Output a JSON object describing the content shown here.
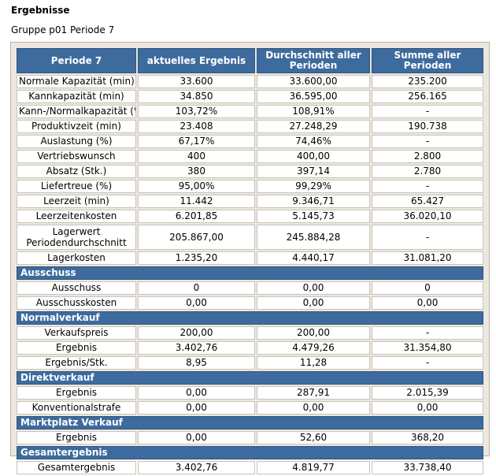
{
  "title": "Ergebnisse",
  "subtitle": "Gruppe p01 Periode 7",
  "header": [
    "Periode 7",
    "aktuelles Ergebnis",
    "Durchschnitt aller Perioden",
    "Summe aller Perioden"
  ],
  "sections": [
    {
      "heading": "",
      "rows": [
        {
          "label": "Normale Kapazität (min)",
          "values": [
            "33.600",
            "33.600,00",
            "235.200"
          ]
        },
        {
          "label": "Kannkapazität (min)",
          "values": [
            "34.850",
            "36.595,00",
            "256.165"
          ]
        },
        {
          "label": "Kann-/Normalkapazität (%)",
          "values": [
            "103,72%",
            "108,91%",
            "-"
          ]
        },
        {
          "label": "Produktivzeit (min)",
          "values": [
            "23.408",
            "27.248,29",
            "190.738"
          ]
        },
        {
          "label": "Auslastung (%)",
          "values": [
            "67,17%",
            "74,46%",
            "-"
          ]
        },
        {
          "label": "Vertriebswunsch",
          "values": [
            "400",
            "400,00",
            "2.800"
          ]
        },
        {
          "label": "Absatz (Stk.)",
          "values": [
            "380",
            "397,14",
            "2.780"
          ]
        },
        {
          "label": "Liefertreue (%)",
          "values": [
            "95,00%",
            "99,29%",
            "-"
          ]
        },
        {
          "label": "Leerzeit (min)",
          "values": [
            "11.442",
            "9.346,71",
            "65.427"
          ]
        },
        {
          "label": "Leerzeitenkosten",
          "values": [
            "6.201,85",
            "5.145,73",
            "36.020,10"
          ]
        },
        {
          "label": "Lagerwert Periodendurchschnitt",
          "values": [
            "205.867,00",
            "245.884,28",
            "-"
          ],
          "tall": true
        },
        {
          "label": "Lagerkosten",
          "values": [
            "1.235,20",
            "4.440,17",
            "31.081,20"
          ]
        }
      ]
    },
    {
      "heading": "Ausschuss",
      "rows": [
        {
          "label": "Ausschuss",
          "values": [
            "0",
            "0,00",
            "0"
          ]
        },
        {
          "label": "Ausschusskosten",
          "values": [
            "0,00",
            "0,00",
            "0,00"
          ]
        }
      ]
    },
    {
      "heading": "Normalverkauf",
      "rows": [
        {
          "label": "Verkaufspreis",
          "values": [
            "200,00",
            "200,00",
            "-"
          ]
        },
        {
          "label": "Ergebnis",
          "values": [
            "3.402,76",
            "4.479,26",
            "31.354,80"
          ]
        },
        {
          "label": "Ergebnis/Stk.",
          "values": [
            "8,95",
            "11,28",
            "-"
          ]
        }
      ]
    },
    {
      "heading": "Direktverkauf",
      "rows": [
        {
          "label": "Ergebnis",
          "values": [
            "0,00",
            "287,91",
            "2.015,39"
          ]
        },
        {
          "label": "Konventionalstrafe",
          "values": [
            "0,00",
            "0,00",
            "0,00"
          ]
        }
      ]
    },
    {
      "heading": "Marktplatz Verkauf",
      "rows": [
        {
          "label": "Ergebnis",
          "values": [
            "0,00",
            "52,60",
            "368,20"
          ]
        }
      ]
    },
    {
      "heading": "Gesamtergebnis",
      "rows": [
        {
          "label": "Gesamtergebnis",
          "values": [
            "3.402,76",
            "4.819,77",
            "33.738,40"
          ]
        }
      ]
    }
  ]
}
